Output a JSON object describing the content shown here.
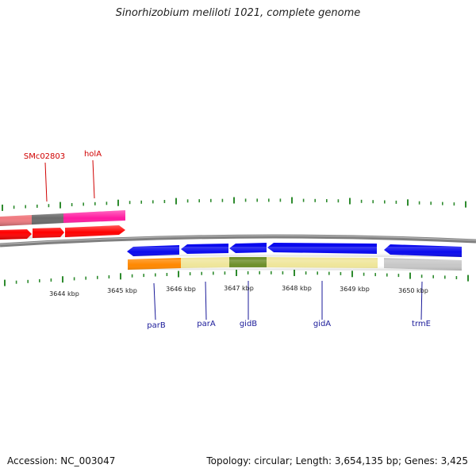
{
  "title": "Sinorhizobium meliloti 1021, complete genome",
  "footer": {
    "accession": "Accession: NC_003047",
    "summary": "Topology: circular; Length: 3,654,135 bp; Genes: 3,425"
  },
  "colors": {
    "tick": "#2e8b2e",
    "backbone": "#808080",
    "forward_label": "#d00000",
    "reverse_label": "#1a1a99",
    "red_arrow": "#ff0000",
    "pink_track": "#ff1aa0",
    "light_red_track": "#f07a80",
    "grey_track": "#6b6b6b",
    "blue_arrow": "#0a0aee",
    "orange_track": "#ff8800",
    "khaki_track": "#efe69a",
    "olive_track": "#6e8f2a",
    "silver_track": "#c8c8c8"
  },
  "forward_labels": [
    {
      "text": "SMc02803"
    },
    {
      "text": "holA"
    }
  ],
  "reverse_labels": [
    {
      "text": "parB"
    },
    {
      "text": "parA"
    },
    {
      "text": "gidB"
    },
    {
      "text": "gidA"
    },
    {
      "text": "trmE"
    }
  ],
  "scale_labels": [
    "3644 kbp",
    "3645 kbp",
    "3646 kbp",
    "3647 kbp",
    "3648 kbp",
    "3649 kbp",
    "3650 kbp"
  ]
}
